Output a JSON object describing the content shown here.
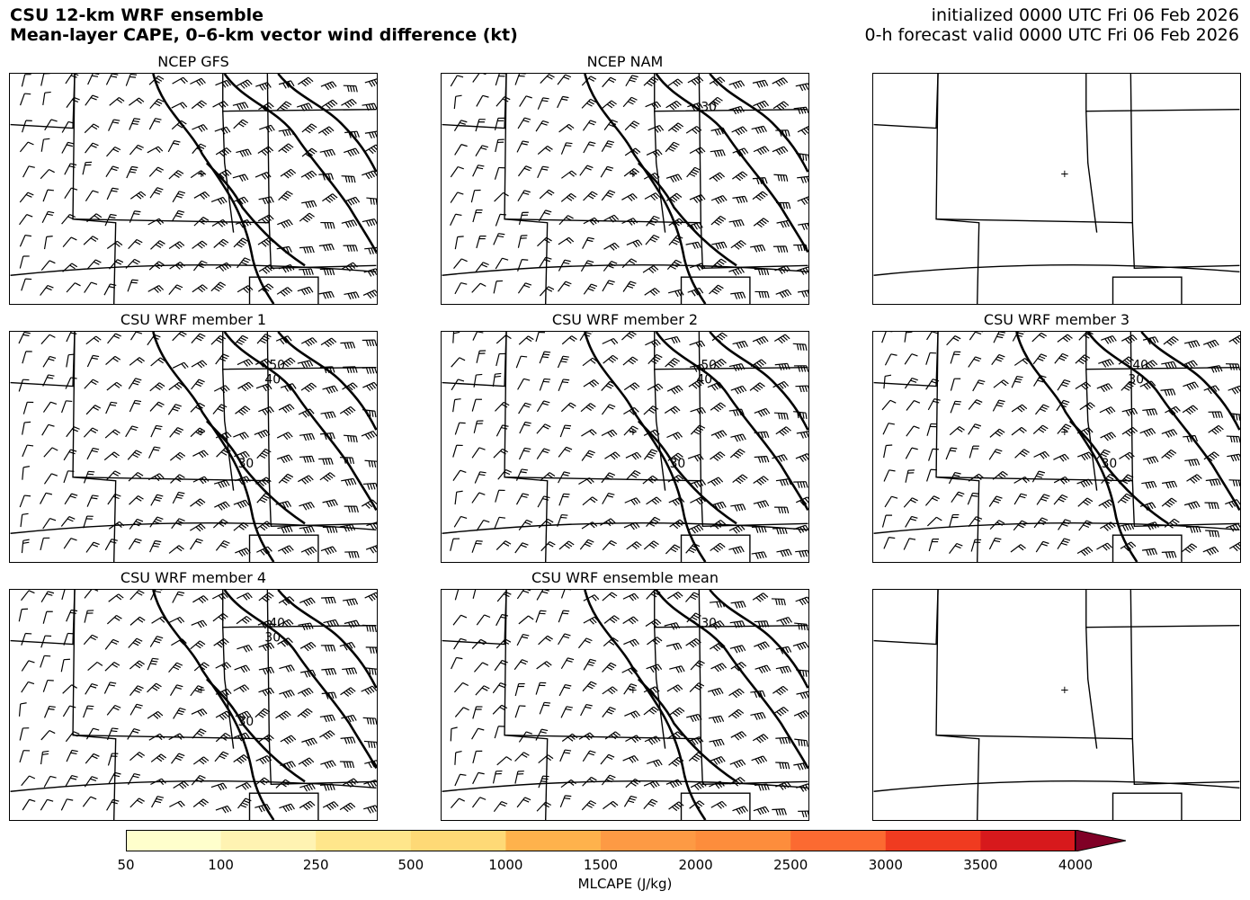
{
  "header": {
    "title_line1": "CSU 12-km WRF ensemble",
    "title_line2": "Mean-layer CAPE, 0–6-km vector wind difference (kt)",
    "init_line": "initialized 0000 UTC Fri 06 Feb 2026",
    "valid_line": "0-h forecast valid 0000 UTC Fri 06 Feb 2026"
  },
  "panels": [
    {
      "title": "NCEP GFS",
      "has_data": true,
      "contour_labels": []
    },
    {
      "title": "NCEP NAM",
      "has_data": true,
      "contour_labels": [
        "30"
      ]
    },
    {
      "title": "",
      "has_data": false,
      "contour_labels": []
    },
    {
      "title": "CSU WRF member 1",
      "has_data": true,
      "contour_labels": [
        "50",
        "40",
        "30"
      ]
    },
    {
      "title": "CSU WRF member 2",
      "has_data": true,
      "contour_labels": [
        "50",
        "40",
        "30"
      ]
    },
    {
      "title": "CSU WRF member 3",
      "has_data": true,
      "contour_labels": [
        "40",
        "30",
        "30"
      ]
    },
    {
      "title": "CSU WRF member 4",
      "has_data": true,
      "contour_labels": [
        "40",
        "30",
        "30"
      ]
    },
    {
      "title": "CSU WRF ensemble mean",
      "has_data": true,
      "contour_labels": [
        "30"
      ]
    },
    {
      "title": "",
      "has_data": false,
      "contour_labels": []
    }
  ],
  "colorbar": {
    "label": "MLCAPE (J/kg)",
    "ticks": [
      "50",
      "100",
      "250",
      "500",
      "1000",
      "1500",
      "2000",
      "2500",
      "3000",
      "3500",
      "4000"
    ],
    "colors": [
      "#ffffcc",
      "#fff3b2",
      "#ffe68b",
      "#fed976",
      "#feb24c",
      "#fd9a44",
      "#fd8d3c",
      "#fc6a31",
      "#f03b20",
      "#d7191c",
      "#a50026",
      "#800026"
    ]
  }
}
